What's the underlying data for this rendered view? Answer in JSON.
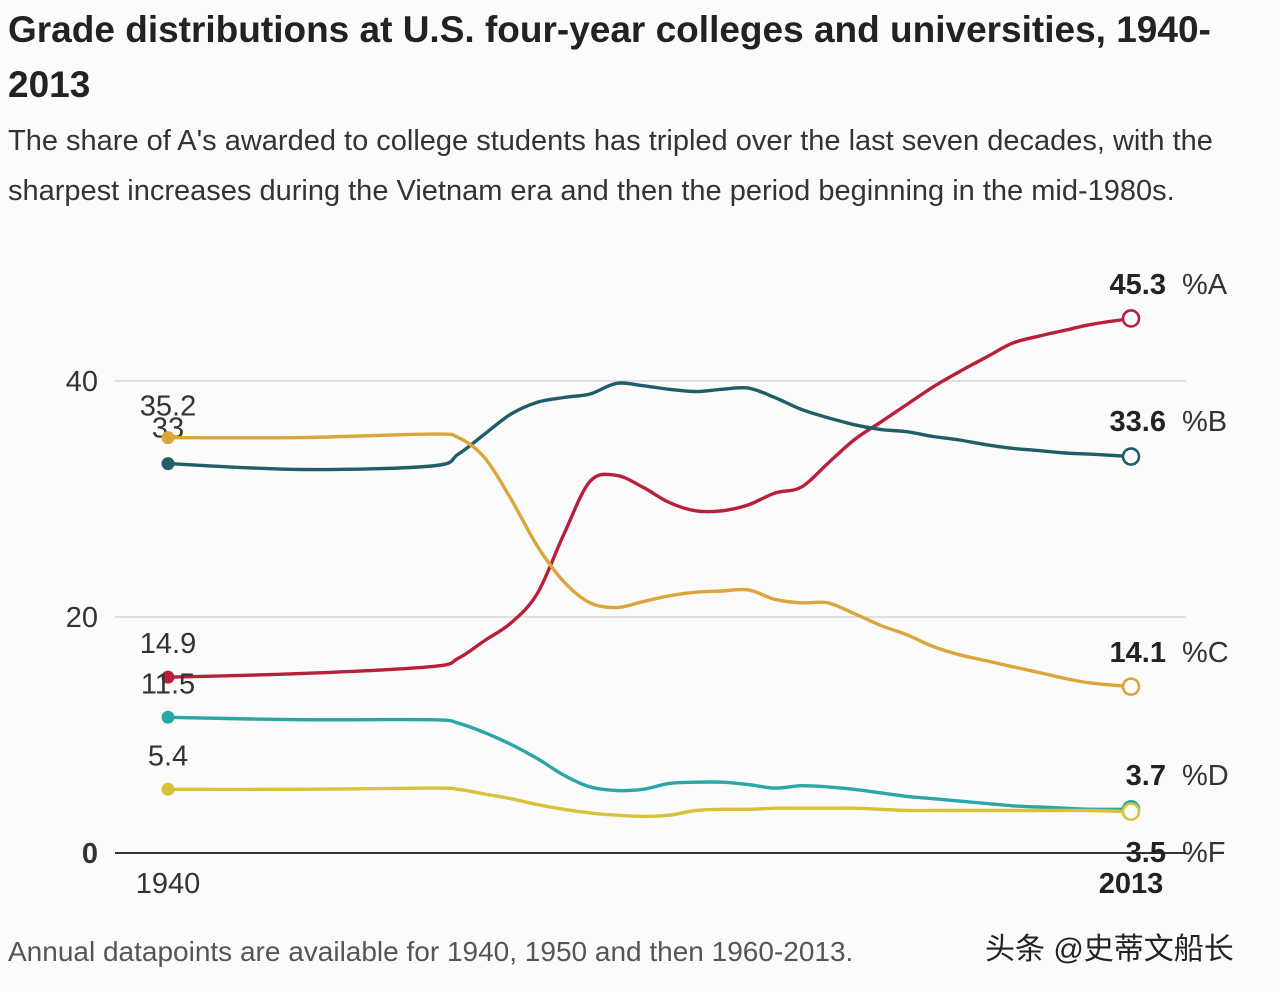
{
  "chart_data": {
    "type": "line",
    "title": "Grade distributions at U.S. four-year colleges and universities, 1940-2013",
    "subtitle": "The share of A's awarded to college students has tripled over the last seven decades, with the sharpest increases during the Vietnam era and then the period beginning in the mid-1980s.",
    "footnote": "Annual datapoints are available for 1940, 1950 and then 1960-2013.",
    "xlabel": "",
    "ylabel": "",
    "xlim": [
      1940,
      2013
    ],
    "ylim": [
      0,
      45.3
    ],
    "y_ticks": [
      "0",
      "20",
      "40"
    ],
    "x_ticks": [
      "1940",
      "2013"
    ],
    "grid": true,
    "series": [
      {
        "name": "%A",
        "color": "#b8203a",
        "start_label": "14.9",
        "end_value": "45.3",
        "x": [
          1940,
          1950,
          1960,
          1962,
          1964,
          1966,
          1968,
          1970,
          1972,
          1974,
          1976,
          1978,
          1980,
          1982,
          1984,
          1986,
          1988,
          1990,
          1992,
          1994,
          1996,
          1998,
          2000,
          2002,
          2004,
          2006,
          2008,
          2010,
          2013
        ],
        "values": [
          14.9,
          15.2,
          15.8,
          16.5,
          18,
          19.5,
          22,
          27,
          31.5,
          32,
          31,
          29.7,
          29,
          29,
          29.5,
          30.5,
          31,
          33,
          35,
          36.5,
          38,
          39.5,
          40.8,
          42,
          43.2,
          43.8,
          44.3,
          44.8,
          45.3
        ]
      },
      {
        "name": "%B",
        "color": "#1f5e68",
        "start_label": "33",
        "end_value": "33.6",
        "x": [
          1940,
          1950,
          1960,
          1962,
          1964,
          1966,
          1968,
          1970,
          1972,
          1974,
          1976,
          1978,
          1980,
          1982,
          1984,
          1986,
          1988,
          1990,
          1992,
          1994,
          1996,
          1998,
          2000,
          2002,
          2004,
          2006,
          2008,
          2010,
          2013
        ],
        "values": [
          33,
          32.5,
          32.8,
          33.8,
          35.5,
          37.2,
          38.2,
          38.6,
          38.9,
          39.8,
          39.6,
          39.3,
          39.1,
          39.3,
          39.4,
          38.6,
          37.6,
          36.9,
          36.3,
          35.9,
          35.7,
          35.3,
          35,
          34.6,
          34.3,
          34.1,
          33.9,
          33.8,
          33.6
        ]
      },
      {
        "name": "%C",
        "color": "#dba53c",
        "start_label": "35.2",
        "end_value": "14.1",
        "x": [
          1940,
          1950,
          1960,
          1962,
          1964,
          1966,
          1968,
          1970,
          1972,
          1974,
          1976,
          1978,
          1980,
          1982,
          1984,
          1986,
          1988,
          1990,
          1992,
          1994,
          1996,
          1998,
          2000,
          2002,
          2004,
          2006,
          2008,
          2010,
          2013
        ],
        "values": [
          35.2,
          35.2,
          35.5,
          35.2,
          33.5,
          30,
          26,
          23,
          21.2,
          20.8,
          21.3,
          21.8,
          22.1,
          22.2,
          22.3,
          21.5,
          21.2,
          21.2,
          20.3,
          19.3,
          18.5,
          17.5,
          16.8,
          16.3,
          15.8,
          15.3,
          14.8,
          14.4,
          14.1
        ]
      },
      {
        "name": "%D",
        "color": "#2ba6a6",
        "start_label": "11.5",
        "end_value": "3.7",
        "x": [
          1940,
          1950,
          1960,
          1962,
          1964,
          1966,
          1968,
          1970,
          1972,
          1974,
          1976,
          1978,
          1980,
          1982,
          1984,
          1986,
          1988,
          1990,
          1992,
          1994,
          1996,
          1998,
          2000,
          2002,
          2004,
          2006,
          2008,
          2010,
          2013
        ],
        "values": [
          11.5,
          11.3,
          11.3,
          11,
          10.2,
          9.2,
          8,
          6.6,
          5.6,
          5.3,
          5.4,
          5.9,
          6,
          6,
          5.8,
          5.5,
          5.7,
          5.6,
          5.4,
          5.1,
          4.8,
          4.6,
          4.4,
          4.2,
          4,
          3.9,
          3.8,
          3.7,
          3.7
        ]
      },
      {
        "name": "%F",
        "color": "#d8c23a",
        "start_label": "5.4",
        "end_value": "3.5",
        "x": [
          1940,
          1950,
          1960,
          1962,
          1964,
          1966,
          1968,
          1970,
          1972,
          1974,
          1976,
          1978,
          1980,
          1982,
          1984,
          1986,
          1988,
          1990,
          1992,
          1994,
          1996,
          1998,
          2000,
          2002,
          2004,
          2006,
          2008,
          2010,
          2013
        ],
        "values": [
          5.4,
          5.4,
          5.5,
          5.4,
          5,
          4.6,
          4.1,
          3.7,
          3.4,
          3.2,
          3.1,
          3.2,
          3.6,
          3.7,
          3.7,
          3.8,
          3.8,
          3.8,
          3.8,
          3.7,
          3.6,
          3.6,
          3.6,
          3.6,
          3.6,
          3.6,
          3.6,
          3.6,
          3.5
        ]
      }
    ]
  },
  "watermark": "头条 @史蒂文船长"
}
